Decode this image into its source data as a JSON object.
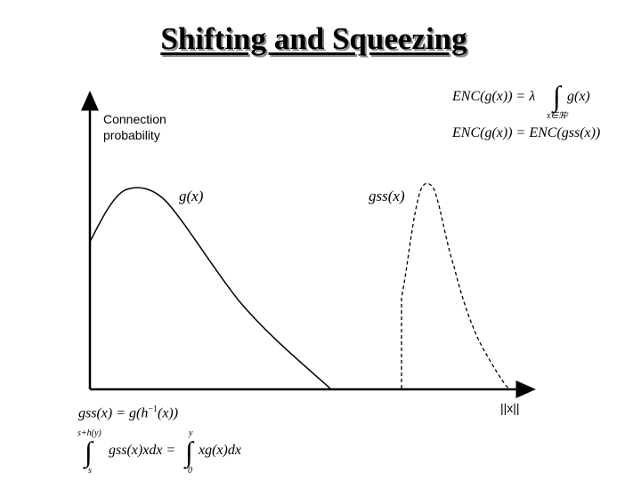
{
  "title": "Shifting and Squeezing",
  "axes": {
    "y_label_line1": "Connection",
    "y_label_line2": "probability",
    "x_label": "||x||"
  },
  "curves": {
    "g_label": "g(x)",
    "gss_label": "gss(x)"
  },
  "equations": {
    "enc1_left": "ENC(g(x)) = λ",
    "enc1_right": "g(x)",
    "enc1_sub": "x∈ℜ²",
    "enc2": "ENC(g(x)) = ENC(gss(x))",
    "gss_def_left": "gss(x) = g(h",
    "gss_def_sup": "−1",
    "gss_def_right": "(x))",
    "int1_upper": "s+h(y)",
    "int1_lower": "s",
    "int1_body": "gss(x)xdx =",
    "int2_upper": "y",
    "int2_lower": "0",
    "int2_body": "xg(x)dx"
  },
  "styles": {
    "stroke": "#000000",
    "title_shadow": "#8a8a8a"
  }
}
